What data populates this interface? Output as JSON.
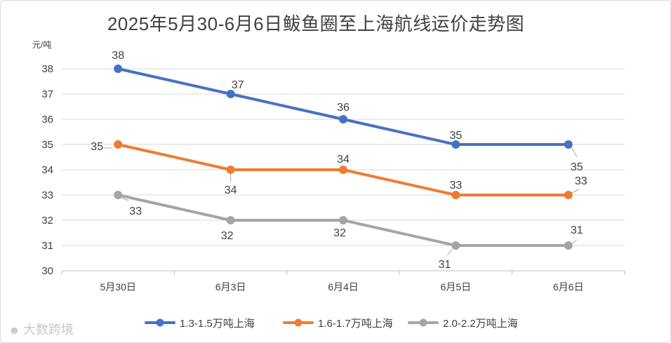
{
  "chart_data": {
    "type": "line",
    "title": "2025年5月30-6月6日鲅鱼圈至上海航线运价走势图",
    "ylabel": "元/吨",
    "xlabel": "",
    "categories": [
      "5月30日",
      "6月3日",
      "6月4日",
      "6月5日",
      "6月6日"
    ],
    "ylim": [
      30,
      38
    ],
    "yticks": [
      30,
      31,
      32,
      33,
      34,
      35,
      36,
      37,
      38
    ],
    "grid": true,
    "legend_position": "bottom",
    "series": [
      {
        "name": "1.3-1.5万吨上海",
        "color": "#4472c4",
        "values": [
          38,
          37,
          36,
          35,
          35
        ]
      },
      {
        "name": "1.6-1.7万吨上海",
        "color": "#ed7d31",
        "values": [
          35,
          34,
          34,
          33,
          33
        ]
      },
      {
        "name": "2.0-2.2万吨上海",
        "color": "#a5a5a5",
        "values": [
          33,
          32,
          32,
          31,
          31
        ]
      }
    ]
  },
  "watermark": {
    "icon": "weibo-icon",
    "text": "大数跨境"
  }
}
